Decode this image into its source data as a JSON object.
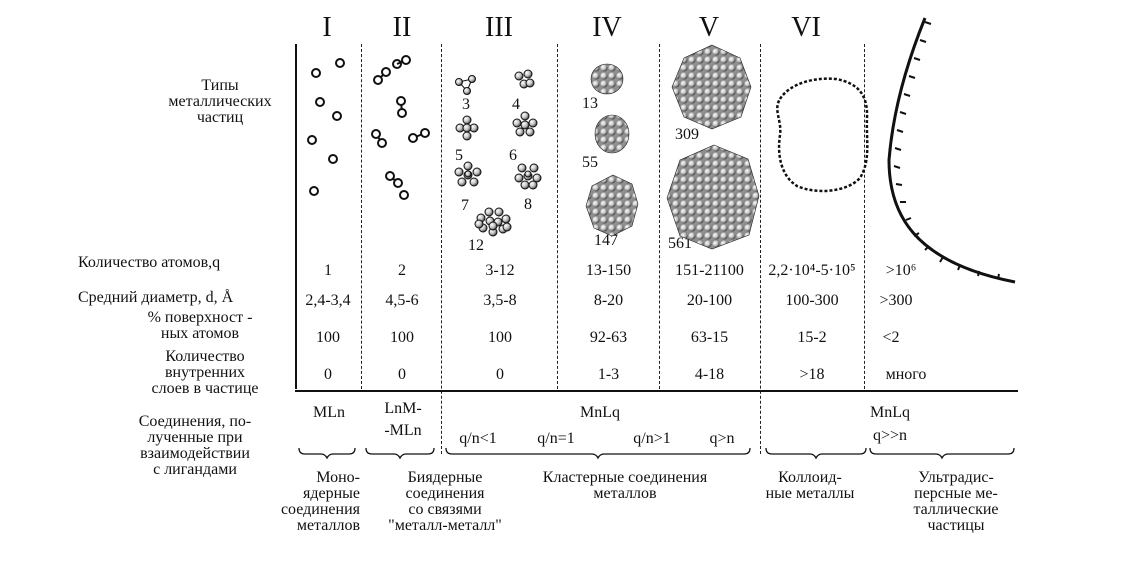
{
  "columns": [
    {
      "numeral": "I",
      "atoms": "1",
      "diameter": "2,4-3,4",
      "surface": "100",
      "layers": "0"
    },
    {
      "numeral": "II",
      "atoms": "2",
      "diameter": "4,5-6",
      "surface": "100",
      "layers": "0"
    },
    {
      "numeral": "III",
      "atoms": "3-12",
      "diameter": "3,5-8",
      "surface": "100",
      "layers": "0"
    },
    {
      "numeral": "IV",
      "atoms": "13-150",
      "diameter": "8-20",
      "surface": "92-63",
      "layers": "1-3"
    },
    {
      "numeral": "V",
      "atoms": "151-21100",
      "diameter": "20-100",
      "surface": "63-15",
      "layers": "4-18"
    },
    {
      "numeral": "VI",
      "atoms": "2,2·10⁴-5·10⁵",
      "diameter": "100-300",
      "surface": "15-2",
      "layers": ">18"
    },
    {
      "numeral": "",
      "atoms": ">10⁶",
      "diameter": ">300",
      "surface": "<2",
      "layers": "много"
    }
  ],
  "row_labels": {
    "types": [
      "Типы",
      "металлических",
      "частиц"
    ],
    "atoms": "Количество атомов,q",
    "diameter": "Средний диаметр, d, Å",
    "surface": [
      "% поверхност -",
      "ных атомов"
    ],
    "layers": [
      "Количество",
      "внутренних",
      "слоев в частице"
    ],
    "compounds": [
      "Соединения, по-",
      "лученные при",
      "взаимодействии",
      "с лигандами"
    ]
  },
  "particle_labels": {
    "III": [
      "3",
      "4",
      "5",
      "6",
      "7",
      "8",
      "12"
    ],
    "IV": [
      "13",
      "55",
      "147"
    ],
    "V": [
      "309",
      "561"
    ]
  },
  "compounds": {
    "I": "MLn",
    "II_top": "LnM-",
    "II_bottom": "-MLn",
    "clusters": "MnLq",
    "cluster_ratios": [
      "q/n<1",
      "q/n=1",
      "q/n>1",
      "q>n"
    ],
    "colloid": "MnLq",
    "colloid_ratio": "q>>n"
  },
  "categories": {
    "mono": [
      "Моно-",
      "ядерные",
      "соединения",
      "металлов"
    ],
    "binuclear": [
      "Биядерные",
      "соединения",
      "со связями",
      "\"металл-металл\""
    ],
    "cluster": [
      "Кластерные соединения",
      "металлов"
    ],
    "colloid": [
      "Коллоид-",
      "ные металлы"
    ],
    "ultra": [
      "Ультрадис-",
      "персные ме-",
      "таллические",
      "частицы"
    ]
  }
}
